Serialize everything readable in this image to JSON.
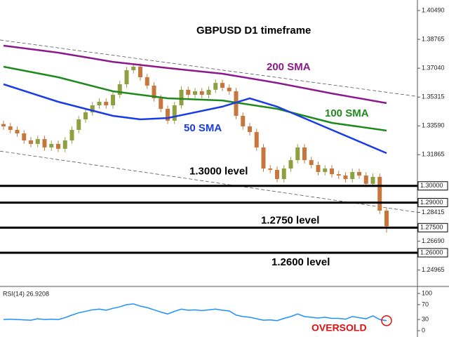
{
  "chart_data": [
    {
      "type": "candlestick",
      "title": "GBPUSD D1 timeframe",
      "up_color": "#8fa040",
      "down_color": "#c8773c",
      "open": [
        1.337,
        1.3356,
        1.3335,
        1.3314,
        1.3272,
        1.3251,
        1.328,
        1.323,
        1.3251,
        1.3222,
        1.3272,
        1.3335,
        1.3398,
        1.344,
        1.3482,
        1.3503,
        1.3482,
        1.3545,
        1.3608,
        1.3692,
        1.3713,
        1.365,
        1.36,
        1.3524,
        1.3461,
        1.339,
        1.3482,
        1.3575,
        1.3545,
        1.3566,
        1.3545,
        1.3575,
        1.3616,
        1.3587,
        1.3566,
        1.3419,
        1.3356,
        1.3322,
        1.323,
        1.3104,
        1.3096,
        1.3041,
        1.3104,
        1.3154,
        1.323,
        1.3154,
        1.3125,
        1.3083,
        1.3104,
        1.307,
        1.3062,
        1.3041,
        1.3083,
        1.3062,
        1.3012,
        1.3054,
        1.2852
      ],
      "high": [
        1.339,
        1.3376,
        1.3355,
        1.3334,
        1.3292,
        1.33,
        1.33,
        1.3271,
        1.3271,
        1.3292,
        1.3355,
        1.3418,
        1.346,
        1.3502,
        1.3523,
        1.3523,
        1.3565,
        1.3628,
        1.3712,
        1.3733,
        1.3733,
        1.367,
        1.362,
        1.3544,
        1.3481,
        1.3502,
        1.3595,
        1.3595,
        1.3586,
        1.3586,
        1.3595,
        1.3636,
        1.3636,
        1.3607,
        1.3586,
        1.3439,
        1.3376,
        1.3342,
        1.325,
        1.3124,
        1.3116,
        1.3124,
        1.3174,
        1.325,
        1.325,
        1.3174,
        1.3145,
        1.3124,
        1.3124,
        1.309,
        1.3082,
        1.3103,
        1.3103,
        1.3082,
        1.3074,
        1.3074,
        1.2872
      ],
      "low": [
        1.3336,
        1.3315,
        1.3294,
        1.3252,
        1.3231,
        1.3231,
        1.321,
        1.321,
        1.3202,
        1.3202,
        1.3252,
        1.3315,
        1.3378,
        1.342,
        1.3462,
        1.3462,
        1.3462,
        1.3525,
        1.3588,
        1.3672,
        1.363,
        1.358,
        1.3504,
        1.3441,
        1.337,
        1.337,
        1.3462,
        1.3525,
        1.3525,
        1.3525,
        1.3525,
        1.3555,
        1.3567,
        1.3546,
        1.3399,
        1.3336,
        1.3302,
        1.321,
        1.3084,
        1.3076,
        1.3021,
        1.3021,
        1.3084,
        1.3134,
        1.3134,
        1.3105,
        1.3063,
        1.3063,
        1.305,
        1.3042,
        1.3021,
        1.3021,
        1.3042,
        1.2992,
        1.2992,
        1.2832,
        1.272
      ],
      "close": [
        1.3356,
        1.3335,
        1.3314,
        1.3272,
        1.3251,
        1.328,
        1.323,
        1.3251,
        1.3222,
        1.3272,
        1.3335,
        1.3398,
        1.344,
        1.3482,
        1.3503,
        1.3482,
        1.3545,
        1.3608,
        1.3692,
        1.3713,
        1.365,
        1.36,
        1.3524,
        1.3461,
        1.339,
        1.3482,
        1.3575,
        1.3545,
        1.3566,
        1.3545,
        1.3575,
        1.3616,
        1.3587,
        1.3566,
        1.3419,
        1.3356,
        1.3322,
        1.323,
        1.3104,
        1.3096,
        1.3041,
        1.3104,
        1.3154,
        1.323,
        1.3154,
        1.3125,
        1.3083,
        1.3104,
        1.307,
        1.3062,
        1.3041,
        1.3083,
        1.3062,
        1.3012,
        1.3054,
        1.2852,
        1.2759
      ],
      "moving_averages": [
        {
          "name": "200 SMA",
          "color": "#8b1a8b",
          "x": [
            0,
            8,
            16,
            24,
            32,
            40,
            48,
            56
          ],
          "values": [
            1.3839,
            1.3797,
            1.3742,
            1.3705,
            1.3671,
            1.3616,
            1.3553,
            1.3495
          ]
        },
        {
          "name": "100 SMA",
          "color": "#1e8a1e",
          "x": [
            0,
            8,
            16,
            24,
            32,
            40,
            48,
            56
          ],
          "values": [
            1.3713,
            1.365,
            1.3566,
            1.3524,
            1.3511,
            1.3461,
            1.3377,
            1.3331
          ]
        },
        {
          "name": "50 SMA",
          "color": "#1a3ce6",
          "x": [
            0,
            8,
            16,
            20,
            24,
            32,
            36,
            40,
            48,
            56
          ],
          "values": [
            1.3608,
            1.3503,
            1.3419,
            1.3398,
            1.3406,
            1.3474,
            1.3524,
            1.3474,
            1.3335,
            1.3196
          ]
        }
      ],
      "trendlines": [
        {
          "x": [
            0,
            56
          ],
          "values": [
            1.387,
            1.356
          ]
        },
        {
          "x": [
            0,
            56
          ],
          "values": [
            1.3205,
            1.2869
          ]
        }
      ],
      "levels": [
        {
          "value": 1.3,
          "label": "1.30000",
          "text": "1.3000 level"
        },
        {
          "value": 1.29,
          "label": "1.29000"
        },
        {
          "value": 1.275,
          "label": "1.27500",
          "text": "1.2750 level"
        },
        {
          "value": 1.26,
          "label": "1.26000",
          "text": "1.2600 level"
        }
      ],
      "ylim": [
        1.2411,
        1.4112
      ],
      "yticks": [
        {
          "value": 1.4049,
          "label": "1.40490"
        },
        {
          "value": 1.38765,
          "label": "1.38765"
        },
        {
          "value": 1.3704,
          "label": "1.37040"
        },
        {
          "value": 1.35315,
          "label": "1.35315"
        },
        {
          "value": 1.3359,
          "label": "1.33590"
        },
        {
          "value": 1.31865,
          "label": "1.31865"
        },
        {
          "value": 1.28415,
          "label": "1.28415"
        },
        {
          "value": 1.2669,
          "label": "1.26690"
        },
        {
          "value": 1.24965,
          "label": "1.24965"
        }
      ]
    },
    {
      "type": "line",
      "title": "RSI(14) 26.9208",
      "color": "#1e90ff",
      "values": [
        30,
        31,
        30,
        29,
        28,
        32,
        30,
        31,
        30,
        35,
        42,
        48,
        52,
        56,
        58,
        55,
        60,
        64,
        70,
        72,
        66,
        62,
        56,
        50,
        45,
        52,
        58,
        55,
        56,
        54,
        56,
        58,
        55,
        53,
        42,
        38,
        36,
        32,
        28,
        29,
        27,
        33,
        38,
        45,
        38,
        36,
        34,
        36,
        33,
        33,
        31,
        38,
        35,
        32,
        40,
        30,
        26.9208
      ],
      "ylim": [
        0,
        100
      ],
      "yticks": [
        100,
        70,
        30,
        0
      ],
      "annotation": "OVERSOLD"
    }
  ]
}
